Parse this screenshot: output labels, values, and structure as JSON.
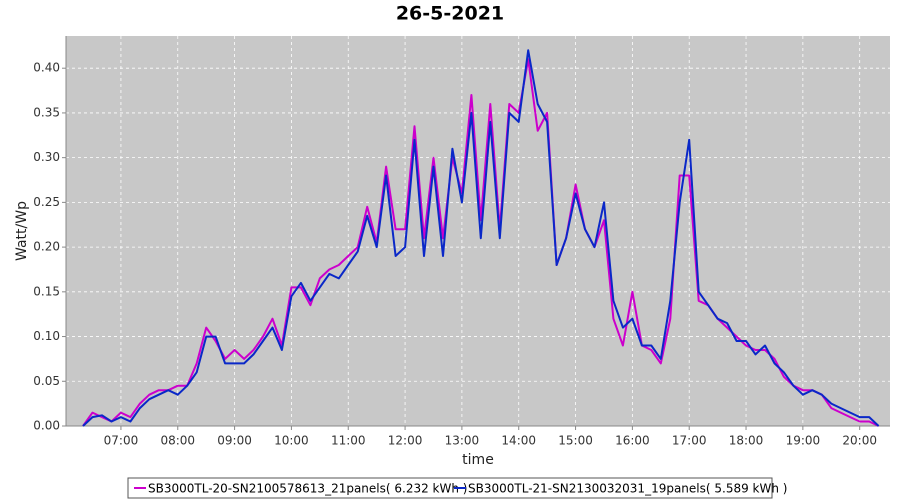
{
  "chart_data": {
    "type": "line",
    "title": "26-5-2021",
    "x_label": "time",
    "y_label": "Watt/Wp",
    "x": [
      "06:20",
      "06:30",
      "06:40",
      "06:50",
      "07:00",
      "07:10",
      "07:20",
      "07:30",
      "07:40",
      "07:50",
      "08:00",
      "08:10",
      "08:20",
      "08:30",
      "08:40",
      "08:50",
      "09:00",
      "09:10",
      "09:20",
      "09:30",
      "09:40",
      "09:50",
      "10:00",
      "10:10",
      "10:20",
      "10:30",
      "10:40",
      "10:50",
      "11:00",
      "11:10",
      "11:20",
      "11:30",
      "11:40",
      "11:50",
      "12:00",
      "12:10",
      "12:20",
      "12:30",
      "12:40",
      "12:50",
      "13:00",
      "13:10",
      "13:20",
      "13:30",
      "13:40",
      "13:50",
      "14:00",
      "14:10",
      "14:20",
      "14:30",
      "14:40",
      "14:50",
      "15:00",
      "15:10",
      "15:20",
      "15:30",
      "15:40",
      "15:50",
      "16:00",
      "16:10",
      "16:20",
      "16:30",
      "16:40",
      "16:50",
      "17:00",
      "17:10",
      "17:20",
      "17:30",
      "17:40",
      "17:50",
      "18:00",
      "18:10",
      "18:20",
      "18:30",
      "18:40",
      "18:50",
      "19:00",
      "19:10",
      "19:20",
      "19:30",
      "19:40",
      "19:50",
      "20:00",
      "20:10",
      "20:20"
    ],
    "series": [
      {
        "name": "SB3000TL-20-SN2100578613_21panels( 6.232 kWh )",
        "color": "#cc00cc",
        "values": [
          0.0,
          0.015,
          0.01,
          0.005,
          0.015,
          0.01,
          0.025,
          0.035,
          0.04,
          0.04,
          0.045,
          0.045,
          0.07,
          0.11,
          0.095,
          0.075,
          0.085,
          0.075,
          0.085,
          0.1,
          0.12,
          0.09,
          0.155,
          0.155,
          0.135,
          0.165,
          0.175,
          0.18,
          0.19,
          0.2,
          0.245,
          0.205,
          0.29,
          0.22,
          0.22,
          0.335,
          0.21,
          0.3,
          0.21,
          0.3,
          0.26,
          0.37,
          0.23,
          0.36,
          0.22,
          0.36,
          0.35,
          0.41,
          0.33,
          0.35,
          0.18,
          0.21,
          0.27,
          0.22,
          0.2,
          0.23,
          0.12,
          0.09,
          0.15,
          0.09,
          0.085,
          0.07,
          0.12,
          0.28,
          0.28,
          0.14,
          0.135,
          0.12,
          0.11,
          0.1,
          0.09,
          0.085,
          0.085,
          0.075,
          0.055,
          0.045,
          0.04,
          0.04,
          0.035,
          0.02,
          0.015,
          0.01,
          0.005,
          0.005,
          0.0
        ]
      },
      {
        "name": "SB3000TL-21-SN2130032031_19panels( 5.589 kWh )",
        "color": "#0a28c8",
        "values": [
          0.0,
          0.01,
          0.012,
          0.005,
          0.01,
          0.005,
          0.02,
          0.03,
          0.035,
          0.04,
          0.035,
          0.045,
          0.06,
          0.1,
          0.1,
          0.07,
          0.07,
          0.07,
          0.08,
          0.095,
          0.11,
          0.085,
          0.145,
          0.16,
          0.14,
          0.155,
          0.17,
          0.165,
          0.18,
          0.195,
          0.235,
          0.2,
          0.28,
          0.19,
          0.2,
          0.32,
          0.19,
          0.29,
          0.19,
          0.31,
          0.25,
          0.35,
          0.21,
          0.34,
          0.21,
          0.35,
          0.34,
          0.42,
          0.36,
          0.34,
          0.18,
          0.21,
          0.26,
          0.22,
          0.2,
          0.25,
          0.14,
          0.11,
          0.12,
          0.09,
          0.09,
          0.075,
          0.14,
          0.25,
          0.32,
          0.15,
          0.135,
          0.12,
          0.115,
          0.095,
          0.095,
          0.08,
          0.09,
          0.07,
          0.06,
          0.045,
          0.035,
          0.04,
          0.035,
          0.025,
          0.02,
          0.015,
          0.01,
          0.01,
          0.0
        ]
      }
    ],
    "xlim": [
      "06:02",
      "20:32"
    ],
    "xticks": [
      "07:00",
      "08:00",
      "09:00",
      "10:00",
      "11:00",
      "12:00",
      "13:00",
      "14:00",
      "15:00",
      "16:00",
      "17:00",
      "18:00",
      "19:00",
      "20:00"
    ],
    "ylim": [
      0,
      0.436
    ],
    "yticks": [
      {
        "value": 0,
        "label": "0.00"
      },
      {
        "value": 0.05,
        "label": "0.05"
      },
      {
        "value": 0.1,
        "label": "0.10"
      },
      {
        "value": 0.15,
        "label": "0.15"
      },
      {
        "value": 0.2,
        "label": "0.20"
      },
      {
        "value": 0.25,
        "label": "0.25"
      },
      {
        "value": 0.3,
        "label": "0.30"
      },
      {
        "value": 0.35,
        "label": "0.35"
      },
      {
        "value": 0.4,
        "label": "0.40"
      }
    ],
    "grid": true,
    "legend": "bottom"
  }
}
